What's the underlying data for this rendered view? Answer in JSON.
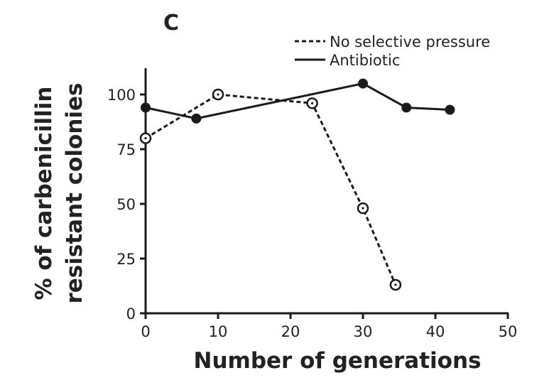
{
  "chart_data": {
    "type": "line",
    "panel_label": "C",
    "xlabel": "Number of generations",
    "ylabel_lines": [
      "% of carbenicillin",
      "resistant colonies"
    ],
    "xlim": [
      0,
      50
    ],
    "ylim": [
      0,
      112
    ],
    "x_ticks": [
      0,
      10,
      20,
      30,
      40,
      50
    ],
    "y_ticks": [
      0,
      25,
      50,
      75,
      100
    ],
    "legend_position": "top-right",
    "series": [
      {
        "name": "No selective pressure",
        "line_style": "dashed",
        "marker": "open-circle",
        "x": [
          0,
          10,
          23,
          30,
          34.5
        ],
        "y": [
          80,
          100,
          96,
          48,
          13
        ]
      },
      {
        "name": "Antibiotic",
        "line_style": "solid",
        "marker": "filled-circle",
        "x": [
          0,
          7,
          30,
          36,
          42
        ],
        "y": [
          94,
          89,
          105,
          94,
          93
        ]
      }
    ]
  }
}
